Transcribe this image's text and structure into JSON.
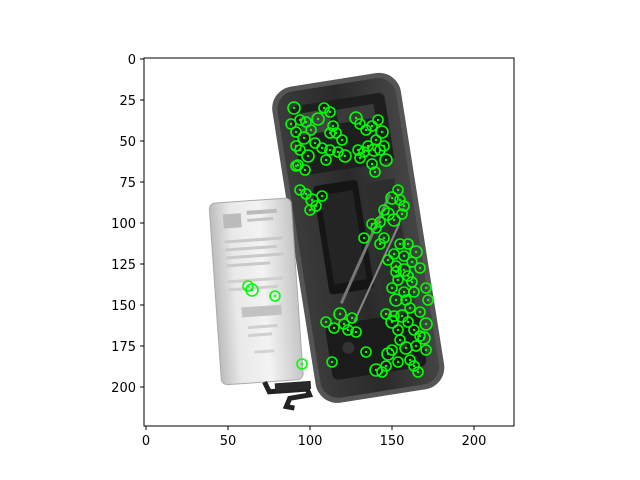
{
  "figure": {
    "image_subject": "smartphone with opened back and removed battery",
    "keypoint_color": "#00ff00",
    "axes": {
      "x_ticks": [
        "0",
        "50",
        "100",
        "150",
        "200"
      ],
      "y_ticks": [
        "0",
        "25",
        "50",
        "75",
        "100",
        "125",
        "150",
        "175",
        "200"
      ]
    }
  }
}
